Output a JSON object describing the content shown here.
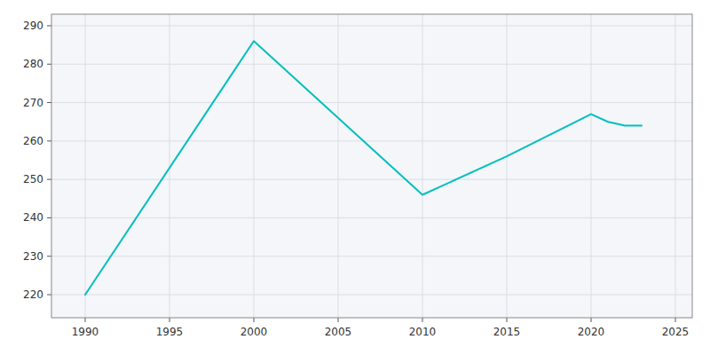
{
  "chart_data": {
    "type": "line",
    "x": [
      1990,
      2000,
      2010,
      2015,
      2020,
      2021,
      2022,
      2023
    ],
    "values": [
      220,
      286,
      246,
      256,
      267,
      265,
      264,
      264
    ],
    "color": "#00BFBF",
    "xlim": [
      1988,
      2026
    ],
    "ylim": [
      214,
      293
    ],
    "xticks": [
      1990,
      1995,
      2000,
      2005,
      2010,
      2015,
      2020,
      2025
    ],
    "yticks": [
      220,
      230,
      240,
      250,
      260,
      270,
      280,
      290
    ],
    "grid": true
  }
}
